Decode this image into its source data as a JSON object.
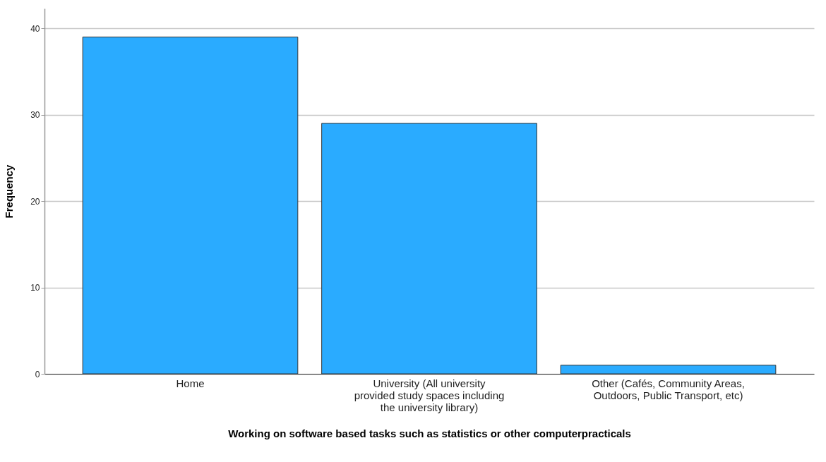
{
  "chart_data": {
    "type": "bar",
    "xlabel": "Working on software based tasks such as statistics or other computerpracticals",
    "ylabel": "Frequency",
    "categories": [
      "Home",
      "University (All university provided study spaces including the university library)",
      "Other (Cafés, Community Areas, Outdoors, Public Transport, etc)"
    ],
    "values": [
      39,
      29,
      1
    ],
    "color": "#2aabff",
    "ylim": [
      0,
      42.3
    ],
    "yticks": [
      0,
      10,
      20,
      30,
      40
    ],
    "grid": "y"
  }
}
